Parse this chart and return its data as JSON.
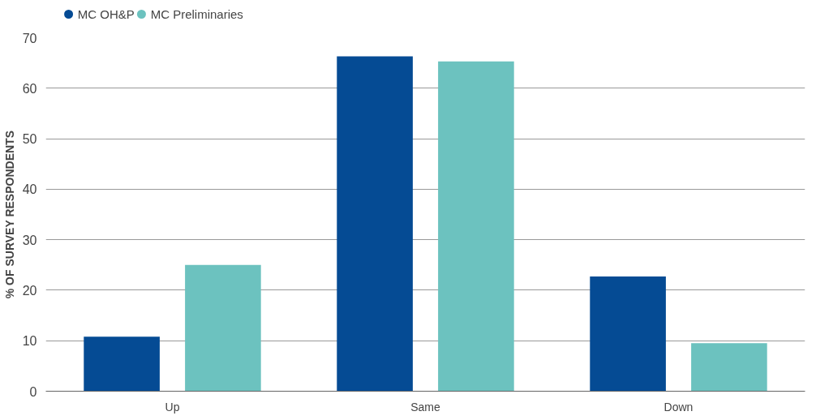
{
  "chart_data": {
    "type": "bar",
    "ylabel": "% OF SURVEY RESPONDENTS",
    "categories": [
      "Up",
      "Same",
      "Down"
    ],
    "series": [
      {
        "name": "MC OH&P",
        "color": "#054b94",
        "values": [
          10.8,
          66.3,
          22.7
        ]
      },
      {
        "name": "MC Preliminaries",
        "color": "#6cc2bf",
        "values": [
          25,
          65.3,
          9.5
        ]
      }
    ],
    "ylim": [
      0,
      70
    ],
    "yticks": [
      0,
      10,
      20,
      30,
      40,
      50,
      60,
      70
    ],
    "grid": "y",
    "legend": "top left"
  }
}
